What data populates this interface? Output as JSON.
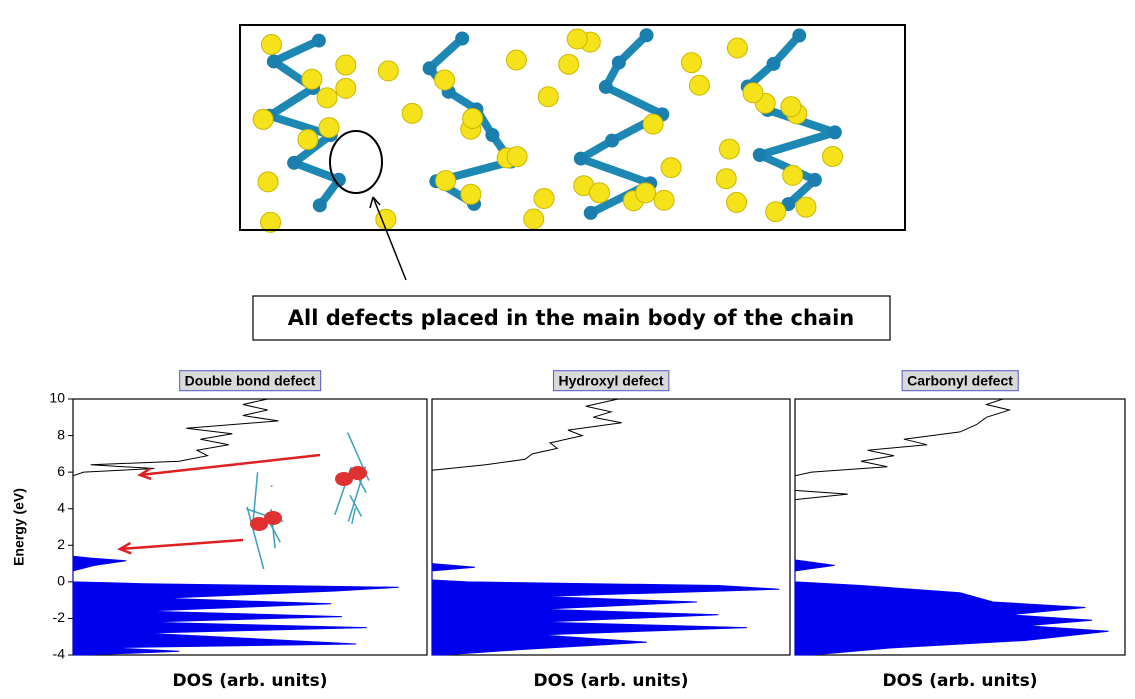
{
  "figure": {
    "annotation": "All defects placed in the main body of the chain"
  },
  "chart_data": [
    {
      "type": "dos",
      "title": "Double bond defect",
      "xlabel": "DOS (arb. units)",
      "ylabel": "Energy (eV)",
      "xlim": [
        0,
        10
      ],
      "ylim": [
        -4,
        10
      ],
      "yticks": [
        -4,
        -2,
        0,
        2,
        4,
        6,
        8,
        10
      ],
      "series": [
        {
          "color": "#0000ee",
          "fill": true,
          "y": [
            -4,
            -3.8,
            -3.6,
            -3.4,
            -2.8,
            -2.5,
            -2.2,
            -1.9,
            -1.6,
            -1.2,
            -0.9,
            -0.5,
            -0.3,
            -0.1,
            0,
            0.6,
            0.9,
            1.15,
            1.3,
            1.4
          ],
          "values": [
            0.3,
            3,
            1,
            8,
            2,
            8.3,
            2,
            7.6,
            2,
            7.3,
            2.5,
            7.4,
            9.2,
            2,
            0,
            0,
            0.6,
            1.5,
            0.5,
            0
          ]
        },
        {
          "color": "#000000",
          "fill": false,
          "y": [
            5.8,
            6.0,
            6.2,
            6.4,
            6.6,
            6.9,
            7.2,
            7.5,
            7.8,
            8.1,
            8.4,
            8.8,
            9.1,
            9.4,
            9.7,
            10
          ],
          "values": [
            0,
            0.3,
            2.3,
            0.5,
            3.0,
            3.8,
            3.5,
            4.4,
            3.6,
            4.5,
            3.2,
            5.8,
            4.8,
            5.5,
            4.8,
            5.5
          ]
        }
      ]
    },
    {
      "type": "dos",
      "title": "Hydroxyl defect",
      "xlabel": "DOS (arb. units)",
      "xlim": [
        0,
        10
      ],
      "ylim": [
        -4,
        10
      ],
      "series": [
        {
          "color": "#0000ee",
          "fill": true,
          "y": [
            -4,
            -3.7,
            -3.3,
            -2.9,
            -2.5,
            -2.2,
            -1.8,
            -1.5,
            -1.1,
            -0.8,
            -0.4,
            -0.2,
            0,
            0.1,
            0.6,
            0.8,
            1
          ],
          "values": [
            0.3,
            2.5,
            6,
            3,
            8.8,
            3,
            8,
            3,
            7.4,
            3,
            9.7,
            8,
            1,
            0,
            0,
            1.2,
            0
          ]
        },
        {
          "color": "#000000",
          "fill": false,
          "y": [
            6.1,
            6.4,
            6.7,
            7.0,
            7.3,
            7.6,
            8.0,
            8.3,
            8.7,
            9.0,
            9.3,
            9.6,
            10
          ],
          "values": [
            0,
            1.5,
            2.6,
            2.8,
            3.5,
            3.3,
            4.2,
            3.8,
            5.3,
            4.5,
            5.0,
            4.3,
            5.2
          ]
        }
      ]
    },
    {
      "type": "dos",
      "title": "Carbonyl defect",
      "xlabel": "DOS (arb. units)",
      "xlim": [
        0,
        10
      ],
      "ylim": [
        -4,
        10
      ],
      "series": [
        {
          "color": "#0000ee",
          "fill": true,
          "y": [
            -4,
            -3.6,
            -3.2,
            -2.7,
            -2.4,
            -2.1,
            -1.8,
            -1.4,
            -1.1,
            -0.6,
            -0.2,
            0,
            0.6,
            0.9,
            1.2
          ],
          "values": [
            0.5,
            3,
            7,
            9.5,
            7,
            9.0,
            6.5,
            8.8,
            6,
            5,
            2,
            0,
            0,
            1.2,
            0
          ]
        },
        {
          "color": "#000000",
          "fill": false,
          "y": [
            4.5,
            4.8,
            5.0,
            5.8,
            6.0,
            6.3,
            6.6,
            6.9,
            7.2,
            7.5,
            7.8,
            8.2,
            8.6,
            9.0,
            9.4,
            9.7,
            10
          ],
          "values": [
            0,
            1.6,
            0,
            0,
            0.5,
            2.8,
            2.0,
            3.0,
            2.2,
            4.0,
            3.3,
            5.0,
            5.5,
            5.8,
            6.5,
            5.8,
            6.3
          ]
        }
      ]
    }
  ]
}
